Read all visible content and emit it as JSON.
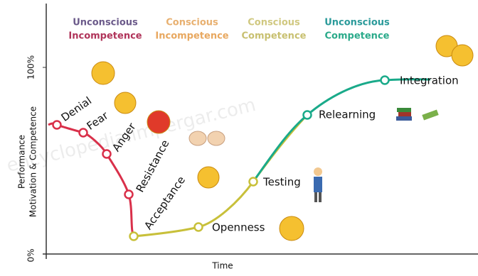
{
  "phases": [
    {
      "line1": "Unconscious",
      "line2": "Incompetence"
    },
    {
      "line1": "Conscious",
      "line2": "Incompetence"
    },
    {
      "line1": "Conscious",
      "line2": "Competence"
    },
    {
      "line1": "Unconscious",
      "line2": "Competence"
    }
  ],
  "stages": [
    "Denial",
    "Fear",
    "Anger",
    "Resistance",
    "Acceptance",
    "Openness",
    "Testing",
    "Relearning",
    "Integration"
  ],
  "y_axis": {
    "label_line1": "Performance",
    "label_line2": "Motivation & Competence",
    "top": "100%",
    "bottom": "0%"
  },
  "x_axis": {
    "label": "Time"
  },
  "watermark": "encyclopedia.impergar.com"
}
